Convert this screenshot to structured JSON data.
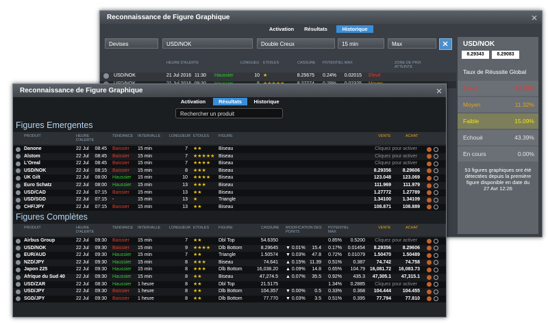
{
  "back_window": {
    "title": "Reconnaissance de Figure Graphique",
    "tabs": [
      "Activation",
      "Résultats",
      "Historique"
    ],
    "filters": [
      "Devises",
      "USD/NOK",
      "Double Creux",
      "15 min",
      "Max"
    ],
    "columns": [
      "HEURE D'ALERTE",
      "LONGUEU",
      "ETOILES",
      "CASSURE",
      "POTENTIEL MAX",
      "ZONE DE PRIX ATTEINTE"
    ],
    "rows": [
      [
        "USD/NOK",
        "21 Jul 2016",
        "11:30",
        "Haussier",
        "10",
        "★",
        "8.25675",
        "0.24%",
        "0.02015",
        "Elevé"
      ],
      [
        "USD/NOK",
        "21 Jul 2016",
        "09:30",
        "Haussier",
        "6",
        "★★★★★",
        "8.27274",
        "0.28%",
        "0.02325",
        "Moyen"
      ]
    ],
    "summary": {
      "product": "USD/NOK",
      "sell": "8.29343",
      "buy": "8.29083",
      "heading": "Taux de Réussite Global",
      "rates": [
        [
          "Elevé",
          "93.18%"
        ],
        [
          "Moyen",
          "11.32%"
        ],
        [
          "Faible",
          "15.09%"
        ],
        [
          "Echoué",
          "43.39%"
        ],
        [
          "En cours",
          "0.00%"
        ]
      ],
      "note": "53 figures graphiques ont été détectées depuis la première figure disponible en date du 27 Avr 12:26"
    }
  },
  "front_window": {
    "title": "Reconnaissance de Figure Graphique",
    "tabs": [
      "Activation",
      "Résultats",
      "Historique"
    ],
    "search": "Rechercher un produit",
    "emerging": {
      "title": "Figures Emergentes",
      "columns": [
        "PRODUIT",
        "HEURE D'ALERTE",
        "TENDANCE",
        "INTERVALLE",
        "LONGUEUR",
        "ETOILES",
        "FIGURE",
        "VENTE",
        "ACHAT"
      ],
      "rows": [
        [
          "Danone",
          "22 Jul",
          "08:45",
          "Baissier",
          "15 min",
          "7",
          "★★",
          "Biseau",
          "Cliquez pour activer"
        ],
        [
          "Alstom",
          "22 Jul",
          "08:45",
          "Baissier",
          "15 min",
          "7",
          "★★★★★",
          "Biseau",
          "Cliquez pour activer"
        ],
        [
          "L'Oreal",
          "22 Jul",
          "08:45",
          "Baissier",
          "15 min",
          "7",
          "★★★★",
          "Biseau",
          "Cliquez pour activer"
        ],
        [
          "USD/NOK",
          "22 Jul",
          "08:15",
          "Baissier",
          "15 min",
          "8",
          "★★★",
          "Biseau",
          "8.29356",
          "8.29606"
        ],
        [
          "UK Gilt",
          "22 Jul",
          "08:00",
          "Haussier",
          "15 min",
          "10",
          "★★★★",
          "Biseau",
          "123.048",
          "123.069"
        ],
        [
          "Euro Schatz",
          "22 Jul",
          "08:00",
          "Haussier",
          "15 min",
          "13",
          "★★★",
          "Biseau",
          "111.969",
          "111.979"
        ],
        [
          "USD/CAD",
          "22 Jul",
          "07:15",
          "Baissier",
          "15 min",
          "13",
          "★★",
          "Biseau",
          "1.27772",
          "1.27789"
        ],
        [
          "USD/SGD",
          "22 Jul",
          "07:15",
          "-",
          "15 min",
          "13",
          "★",
          "Triangle",
          "1.34100",
          "1.34109"
        ],
        [
          "CHF/JPY",
          "22 Jul",
          "07:15",
          "Baissier",
          "15 min",
          "13",
          "★★",
          "Biseau",
          "108.871",
          "108.889"
        ]
      ]
    },
    "completed": {
      "title": "Figures Complètes",
      "columns": [
        "PRODUIT",
        "HEURE D'ALERTE",
        "TENDANCE",
        "INTERVALLE",
        "LONGUEUR",
        "ETOILES",
        "FIGURE",
        "CASSURE",
        "MODIFICATION DES POINTS",
        "POTENTIEL MAX",
        "VENTE",
        "ACHAT"
      ],
      "rows": [
        [
          "Airbus Group",
          "22 Jul",
          "09:30",
          "Baissier",
          "15 min",
          "7",
          "★★",
          "Dbl Top",
          "54.6350",
          null,
          null,
          "0.85%",
          "0.5200",
          "Cliquez pour activer"
        ],
        [
          "USD/NOK",
          "22 Jul",
          "09:30",
          "Baissier",
          "15 min",
          "9",
          "★★★★",
          "Dlb Bottom",
          "8.29645",
          "▼ 0.01%",
          "15.4",
          "0.17%",
          "0.01454",
          "8.29356",
          "8.29606"
        ],
        [
          "EUR/AUD",
          "22 Jul",
          "09:30",
          "Haussier",
          "15 min",
          "7",
          "★★",
          "Triangle",
          "1.50574",
          "▼ 0.03%",
          "47.8",
          "0.72%",
          "0.01079",
          "1.50470",
          "1.50489"
        ],
        [
          "NZD/JPY",
          "22 Jul",
          "09:30",
          "Haussier",
          "15 min",
          "8",
          "★★★",
          "Biseau",
          "74.641",
          "▲ 0.15%",
          "11.39",
          "0.51%",
          "0.387",
          "74.742",
          "74.758"
        ],
        [
          "Japon 225",
          "22 Jul",
          "09:30",
          "Haussier",
          "15 min",
          "8",
          "★★★",
          "Dlb Bottom",
          "16,038.20",
          "▲ 0.09%",
          "14.8",
          "0.65%",
          "104.79",
          "16,081.72",
          "16,083.73"
        ],
        [
          "Afrique du Sud 40",
          "22 Jul",
          "09:30",
          "Haussier",
          "15 min",
          "8",
          "★★",
          "Biseau",
          "47,274.5",
          "▲ 0.07%",
          "35.5",
          "0.92%",
          "435.3",
          "47,305.1",
          "47,315.1"
        ],
        [
          "USD/ZAR",
          "22 Jul",
          "08:30",
          "Haussier",
          "1 heure",
          "8",
          "★★",
          "Dbl Top",
          "21.5175",
          null,
          null,
          "1.34%",
          "0.2885",
          "Cliquez pour activer"
        ],
        [
          "USD/JPY",
          "22 Jul",
          "09:30",
          "Baissier",
          "1 heure",
          "8",
          "★★",
          "Dlb Bottom",
          "104.357",
          "▼ 0.00%",
          "0.5",
          "0.33%",
          "0.368",
          "104.444",
          "104.455"
        ],
        [
          "SGD/JPY",
          "22 Jul",
          "09:30",
          "Baissier",
          "1 heure",
          "8",
          "★★",
          "Dlb Bottom",
          "77.770",
          "▼ 0.03%",
          "3.5",
          "0.51%",
          "0.395",
          "77.794",
          "77.810"
        ]
      ]
    }
  }
}
